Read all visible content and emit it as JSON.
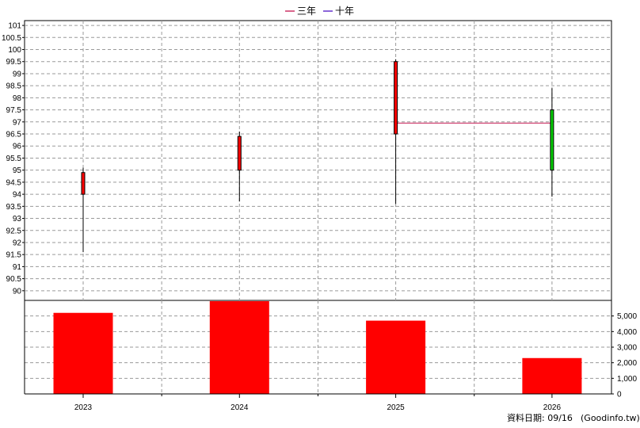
{
  "chart_data": {
    "type": "candlestick",
    "legend": [
      {
        "label": "三年",
        "color": "#cc3366"
      },
      {
        "label": "十年",
        "color": "#6633cc"
      }
    ],
    "legend_placement": "top-center",
    "grid": true,
    "categories": [
      "2023",
      "2024",
      "2025",
      "2026"
    ],
    "price_panel": {
      "ylim": [
        89.6,
        101.2
      ],
      "yticks": [
        "90",
        "90.5",
        "91",
        "91.5",
        "92",
        "92.5",
        "93",
        "93.5",
        "94",
        "94.5",
        "95",
        "95.5",
        "96",
        "96.5",
        "97",
        "97.5",
        "98",
        "98.5",
        "99",
        "99.5",
        "100",
        "100.5",
        "101"
      ],
      "candles": [
        {
          "year": "2023",
          "open": 94.0,
          "close": 94.9,
          "high": 95.1,
          "low": 91.6,
          "color": "#ff0000"
        },
        {
          "year": "2024",
          "open": 95.0,
          "close": 96.4,
          "high": 96.6,
          "low": 93.7,
          "color": "#ff0000"
        },
        {
          "year": "2025",
          "open": 96.5,
          "close": 99.5,
          "high": 99.6,
          "low": 93.6,
          "color": "#ff0000"
        },
        {
          "year": "2026",
          "open": 97.5,
          "close": 95.0,
          "high": 98.4,
          "low": 93.9,
          "color": "#00cc00"
        }
      ],
      "lines": [
        {
          "name": "三年",
          "color": "#cc3366",
          "points": [
            [
              "2025",
              96.95
            ],
            [
              "2026",
              96.95
            ]
          ]
        }
      ]
    },
    "volume_panel": {
      "type": "bar",
      "color": "#ff0000",
      "ylim": [
        0,
        6000
      ],
      "yticks": [
        "0",
        "1,000",
        "2,000",
        "3,000",
        "4,000",
        "5,000"
      ],
      "values": [
        5200,
        5950,
        4700,
        2300
      ]
    }
  },
  "footer": {
    "date_label": "資料日期: 09/16",
    "source": "(Goodinfo.tw)"
  }
}
